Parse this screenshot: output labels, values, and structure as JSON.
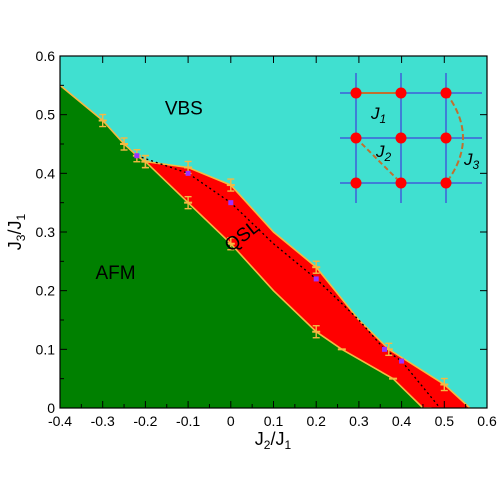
{
  "chart_data": {
    "type": "area",
    "title": "",
    "xlabel": "J2/J1",
    "ylabel": "J3/J1",
    "xlim": [
      -0.4,
      0.6
    ],
    "ylim": [
      0,
      0.6
    ],
    "xticks": [
      "-0.4",
      "-0.3",
      "-0.2",
      "-0.1",
      "0",
      "0.1",
      "0.2",
      "0.3",
      "0.4",
      "0.5",
      "0.6"
    ],
    "yticks": [
      "0",
      "0.1",
      "0.2",
      "0.3",
      "0.4",
      "0.5",
      "0.6"
    ],
    "grid": false,
    "colors": {
      "vbs": "#40E0D0",
      "afm": "#008000",
      "qsl": "#FF0000",
      "boundary": "#F5B942",
      "critical_line": "#000000",
      "critical_points": "#9B30FF",
      "lattice_lines": "#3F5FD9",
      "lattice_sites": "#FF0000",
      "bond_lines": "#C07030"
    },
    "regions": [
      {
        "name": "VBS",
        "label_at": [
          -0.11,
          0.5
        ]
      },
      {
        "name": "AFM",
        "label_at": [
          -0.27,
          0.22
        ]
      },
      {
        "name": "QSL",
        "label_at": [
          0.035,
          0.285
        ],
        "rotation": -38
      }
    ],
    "series": [
      {
        "name": "AFM-QSL boundary",
        "x": [
          -0.4,
          -0.3,
          -0.25,
          -0.22,
          -0.2,
          -0.1,
          0,
          0.1,
          0.2,
          0.26,
          0.38,
          0.45,
          0.47
        ],
        "y": [
          0.55,
          0.49,
          0.45,
          0.43,
          0.42,
          0.35,
          0.28,
          0.2,
          0.13,
          0.1,
          0.05,
          0.0,
          0.0
        ],
        "errorbars": [
          false,
          true,
          true,
          true,
          true,
          true,
          true,
          false,
          true,
          false,
          false,
          false,
          false
        ],
        "markers": [
          false,
          true,
          true,
          true,
          true,
          true,
          true,
          false,
          true,
          true,
          true,
          false,
          false
        ]
      },
      {
        "name": "QSL-VBS boundary",
        "x": [
          -0.22,
          -0.2,
          -0.1,
          0,
          0.1,
          0.2,
          0.3,
          0.37,
          0.5,
          0.56
        ],
        "y": [
          0.43,
          0.42,
          0.41,
          0.38,
          0.3,
          0.24,
          0.15,
          0.1,
          0.04,
          0.0
        ],
        "errorbars": [
          false,
          true,
          true,
          true,
          false,
          true,
          false,
          true,
          true,
          false
        ],
        "markers": [
          false,
          true,
          true,
          true,
          false,
          true,
          false,
          true,
          true,
          false
        ]
      },
      {
        "name": "critical line",
        "x": [
          -0.22,
          -0.1,
          0,
          0.1,
          0.2,
          0.3,
          0.36,
          0.4,
          0.49
        ],
        "y": [
          0.43,
          0.4,
          0.35,
          0.28,
          0.22,
          0.15,
          0.1,
          0.08,
          0.0
        ],
        "points_x": [
          -0.22,
          -0.1,
          0,
          0.2,
          0.36,
          0.4
        ],
        "points_y": [
          0.43,
          0.4,
          0.35,
          0.22,
          0.1,
          0.08
        ]
      }
    ],
    "inset": {
      "type": "square-lattice",
      "labels": [
        "J1",
        "J2",
        "J3"
      ]
    }
  }
}
